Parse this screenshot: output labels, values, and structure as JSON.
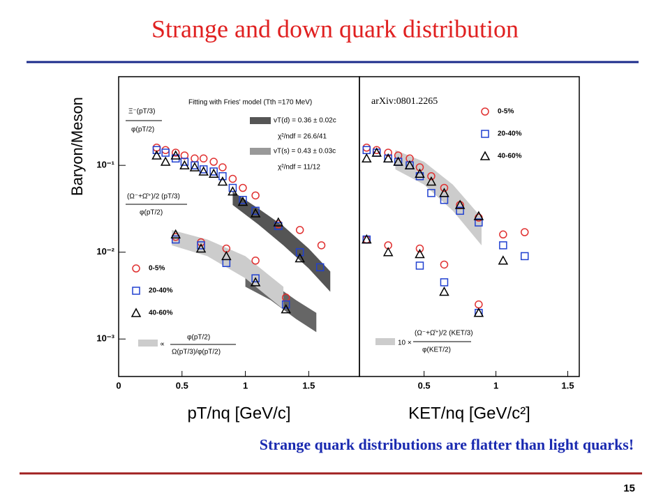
{
  "title": "Strange and down quark distribution",
  "caption": "Strange quark distributions are flatter than light quarks!",
  "page_number": "15",
  "chart_data": [
    {
      "type": "scatter",
      "ylabel": "Baryon/Meson",
      "xlabel": "pT/nq [GeV/c]",
      "log_y": true,
      "legend": "lower left",
      "xlim": [
        0,
        1.9
      ],
      "ylim": [
        0.00037,
        1.05
      ],
      "xticks": [
        0,
        0.5,
        1,
        1.5
      ],
      "yticks": [
        {
          "value": 0.1,
          "label": "10⁻¹"
        },
        {
          "value": 0.01,
          "label": "10⁻²"
        },
        {
          "value": 0.001,
          "label": "10⁻³"
        }
      ],
      "annotations": [
        "Fitting with Fries' model (Tth =170 MeV)",
        "vT(d) = 0.36 ± 0.02c",
        "χ²/ndf = 26.6/41",
        "vT(s) = 0.43 ± 0.03c",
        "χ²/ndf = 11/12",
        "Ξ⁻(pT/3)",
        "φ(pT/2)",
        "(Ω⁻+Ω̄⁺)/2 (pT/3)",
        "φ(pT/2)",
        "∝",
        "φ(pT/2)",
        "Ω(pT/3)/φ(pT/2)"
      ],
      "bands": [
        {
          "color": "#555555",
          "x": [
            0.9,
            1.1,
            1.3,
            1.5,
            1.67
          ],
          "upper": [
            0.05,
            0.032,
            0.02,
            0.011,
            0.006
          ],
          "lower": [
            0.035,
            0.021,
            0.012,
            0.0065,
            0.0035
          ]
        },
        {
          "color": "#666666",
          "x": [
            1.0,
            1.2,
            1.4,
            1.56
          ],
          "upper": [
            0.006,
            0.0045,
            0.0028,
            0.002
          ],
          "lower": [
            0.004,
            0.0028,
            0.0017,
            0.0012
          ]
        },
        {
          "color": "#cccccc",
          "x": [
            0.42,
            0.7,
            1.0,
            1.3
          ],
          "upper": [
            0.018,
            0.014,
            0.009,
            0.004
          ],
          "lower": [
            0.012,
            0.009,
            0.005,
            0.0022
          ]
        }
      ],
      "series": [
        {
          "name": "0-5%",
          "color": "#e03030",
          "marker": "circle",
          "x": [
            0.3,
            0.37,
            0.45,
            0.52,
            0.6,
            0.67,
            0.75,
            0.82,
            0.9,
            0.98,
            1.08,
            1.26,
            1.43,
            1.6,
            0.45,
            0.65,
            0.85,
            1.08,
            1.32
          ],
          "values": [
            0.16,
            0.15,
            0.14,
            0.13,
            0.12,
            0.12,
            0.11,
            0.095,
            0.07,
            0.055,
            0.045,
            0.021,
            0.018,
            0.012,
            0.015,
            0.013,
            0.011,
            0.008,
            0.003
          ]
        },
        {
          "name": "20-40%",
          "color": "#2040d0",
          "marker": "square",
          "x": [
            0.3,
            0.37,
            0.45,
            0.52,
            0.6,
            0.67,
            0.75,
            0.82,
            0.9,
            0.98,
            1.08,
            1.26,
            1.43,
            1.59,
            0.45,
            0.65,
            0.85,
            1.08,
            1.32
          ],
          "values": [
            0.15,
            0.14,
            0.12,
            0.11,
            0.1,
            0.09,
            0.085,
            0.075,
            0.055,
            0.04,
            0.03,
            0.02,
            0.01,
            0.0067,
            0.014,
            0.012,
            0.0075,
            0.005,
            0.0025
          ]
        },
        {
          "name": "40-60%",
          "color": "#000000",
          "marker": "triangle",
          "x": [
            0.3,
            0.37,
            0.45,
            0.52,
            0.6,
            0.67,
            0.75,
            0.82,
            0.9,
            0.98,
            1.08,
            1.26,
            1.43,
            0.45,
            0.65,
            0.85,
            1.08,
            1.32
          ],
          "values": [
            0.13,
            0.11,
            0.13,
            0.1,
            0.095,
            0.085,
            0.08,
            0.065,
            0.05,
            0.038,
            0.028,
            0.022,
            0.0085,
            0.016,
            0.011,
            0.009,
            0.0045,
            0.0022
          ]
        }
      ]
    },
    {
      "type": "scatter",
      "xlabel": "KET/nq [GeV/c²]",
      "log_y": true,
      "legend": "upper right",
      "xlim": [
        0.05,
        1.58
      ],
      "ylim": [
        0.00037,
        1.05
      ],
      "xticks": [
        0.5,
        1,
        1.5
      ],
      "annotations": [
        "arXiv:0801.2265",
        "10 ×",
        "(Ω⁻+Ω̄⁺)/2 (KET/3)",
        "φ(KET/2)"
      ],
      "bands": [
        {
          "color": "#cccccc",
          "x": [
            0.3,
            0.5,
            0.7,
            0.9
          ],
          "upper": [
            0.15,
            0.11,
            0.06,
            0.025
          ],
          "lower": [
            0.09,
            0.06,
            0.03,
            0.012
          ]
        }
      ],
      "series": [
        {
          "name": "0-5%",
          "color": "#e03030",
          "marker": "circle",
          "x": [
            0.1,
            0.17,
            0.25,
            0.32,
            0.4,
            0.47,
            0.55,
            0.64,
            0.75,
            0.88,
            0.1,
            0.25,
            0.47,
            0.64,
            0.88,
            1.05,
            1.2
          ],
          "values": [
            0.16,
            0.15,
            0.14,
            0.13,
            0.12,
            0.095,
            0.075,
            0.055,
            0.035,
            0.025,
            0.014,
            0.012,
            0.011,
            0.0072,
            0.0025,
            0.016,
            0.017
          ]
        },
        {
          "name": "20-40%",
          "color": "#2040d0",
          "marker": "square",
          "x": [
            0.1,
            0.17,
            0.25,
            0.32,
            0.4,
            0.47,
            0.55,
            0.64,
            0.75,
            0.88,
            0.1,
            0.47,
            0.64,
            0.88,
            1.05,
            1.2
          ],
          "values": [
            0.15,
            0.14,
            0.12,
            0.11,
            0.1,
            0.075,
            0.048,
            0.04,
            0.03,
            0.022,
            0.014,
            0.007,
            0.0045,
            0.002,
            0.012,
            0.009
          ]
        },
        {
          "name": "40-60%",
          "color": "#000000",
          "marker": "triangle",
          "x": [
            0.1,
            0.17,
            0.25,
            0.32,
            0.4,
            0.47,
            0.55,
            0.64,
            0.75,
            0.88,
            0.1,
            0.25,
            0.47,
            0.64,
            0.88,
            1.05
          ],
          "values": [
            0.12,
            0.14,
            0.12,
            0.11,
            0.1,
            0.08,
            0.065,
            0.048,
            0.035,
            0.026,
            0.014,
            0.01,
            0.0095,
            0.0035,
            0.002,
            0.008
          ]
        }
      ]
    }
  ]
}
